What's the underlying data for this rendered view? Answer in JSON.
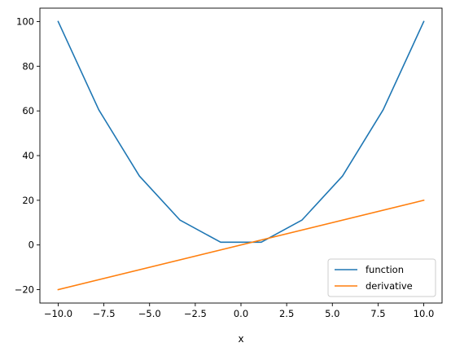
{
  "chart_data": {
    "type": "line",
    "title": "",
    "xlabel": "x",
    "ylabel": "",
    "xlim": [
      -11.0,
      11.0
    ],
    "ylim": [
      -26,
      106
    ],
    "xticks": [
      -10.0,
      -7.5,
      -5.0,
      -2.5,
      0.0,
      2.5,
      5.0,
      7.5,
      10.0
    ],
    "xtick_labels": [
      "−10.0",
      "−7.5",
      "−5.0",
      "−2.5",
      "0.0",
      "2.5",
      "5.0",
      "7.5",
      "10.0"
    ],
    "yticks": [
      -20,
      0,
      20,
      40,
      60,
      80,
      100
    ],
    "ytick_labels": [
      "−20",
      "0",
      "20",
      "40",
      "60",
      "80",
      "100"
    ],
    "grid": false,
    "legend": {
      "position": "lower-right"
    },
    "series": [
      {
        "name": "function",
        "color": "#1f77b4",
        "x": [
          -10.0,
          -7.778,
          -5.556,
          -3.333,
          -1.111,
          1.111,
          3.333,
          5.556,
          7.778,
          10.0
        ],
        "y": [
          100.0,
          60.49,
          30.86,
          11.11,
          1.23,
          1.23,
          11.11,
          30.86,
          60.49,
          100.0
        ]
      },
      {
        "name": "derivative",
        "color": "#ff7f0e",
        "x": [
          -10.0,
          10.0
        ],
        "y": [
          -20.0,
          20.0
        ]
      }
    ]
  }
}
